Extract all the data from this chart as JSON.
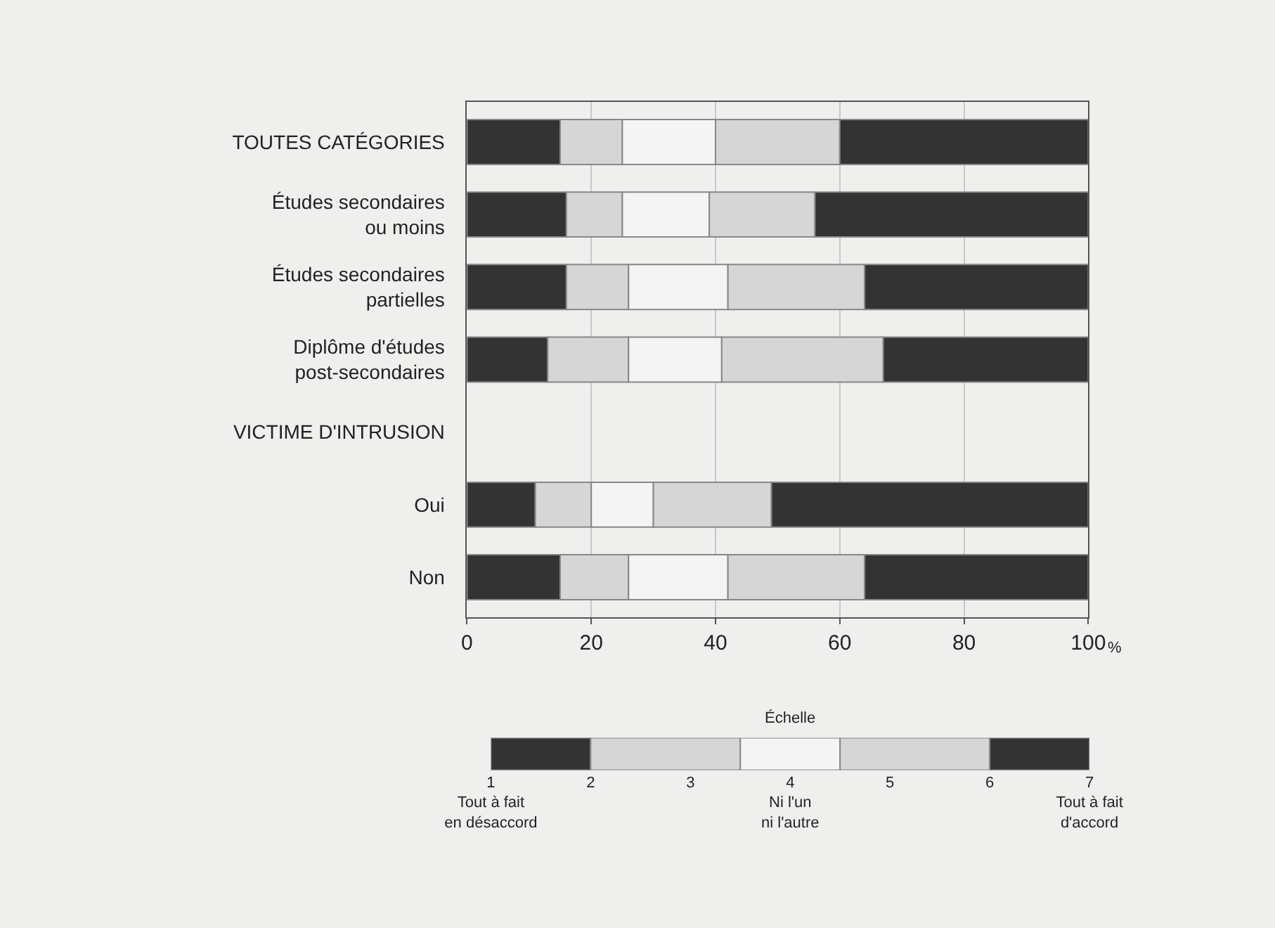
{
  "chart_data": [
    {
      "type": "bar",
      "orientation": "horizontal",
      "stacked": true,
      "categories": [
        "TOUTES CATÉGORIES",
        "Études secondaires\nou moins",
        "Études secondaires\npartielles",
        "Diplôme d'études\npost-secondaires",
        "VICTIME D'INTRUSION",
        "Oui",
        "Non"
      ],
      "series": [
        {
          "color": "#333333",
          "values": [
            15,
            16,
            16,
            13,
            null,
            11,
            15
          ]
        },
        {
          "color": "#d6d6d6",
          "values": [
            10,
            9,
            10,
            13,
            null,
            9,
            11
          ]
        },
        {
          "color": "#f4f4f4",
          "values": [
            15,
            14,
            16,
            15,
            null,
            10,
            16
          ]
        },
        {
          "color": "#d6d6d6",
          "values": [
            20,
            17,
            22,
            26,
            null,
            19,
            22
          ]
        },
        {
          "color": "#333333",
          "values": [
            40,
            44,
            36,
            33,
            null,
            51,
            36
          ]
        }
      ],
      "xlabel": "%",
      "xlim": [
        0,
        100
      ],
      "xticks": [
        0,
        20,
        40,
        60,
        80,
        100
      ],
      "grid": "x"
    },
    {
      "type": "bar",
      "orientation": "horizontal",
      "title": "Échelle",
      "categories": [
        null
      ],
      "series": [
        {
          "color": "#333333",
          "base": [
            1
          ],
          "values": [
            1
          ]
        },
        {
          "color": "#d6d6d6",
          "base": [
            2
          ],
          "values": [
            1.5
          ]
        },
        {
          "color": "#f4f4f4",
          "base": [
            3.5
          ],
          "values": [
            1
          ]
        },
        {
          "color": "#d6d6d6",
          "base": [
            4.5
          ],
          "values": [
            1.5
          ]
        },
        {
          "color": "#333333",
          "base": [
            6
          ],
          "values": [
            1
          ]
        }
      ],
      "xlim": [
        1,
        7
      ],
      "xticks": [
        {
          "value": 1,
          "label": "1\nTout à fait\nen désaccord"
        },
        2,
        3,
        {
          "value": 4,
          "label": "4\nNi l'un\nni l'autre"
        },
        5,
        6,
        {
          "value": 7,
          "label": "7\nTout à fait\nd'accord"
        }
      ],
      "tick_labels": "x"
    }
  ]
}
